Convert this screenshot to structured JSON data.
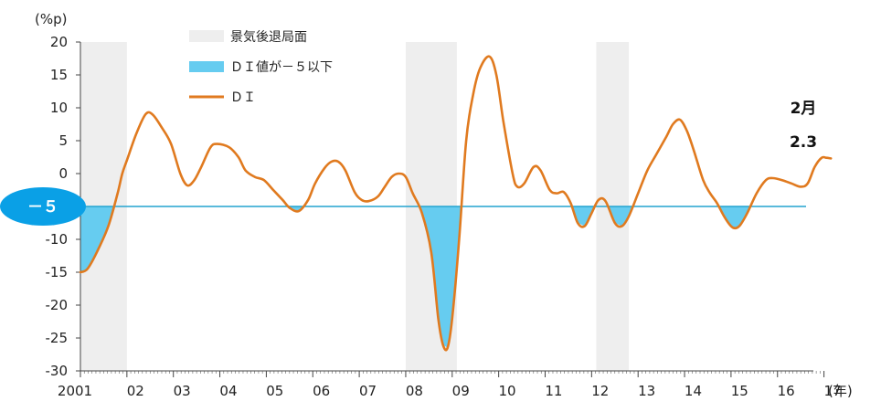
{
  "chart_data": {
    "type": "line",
    "ylabel": "(%p)",
    "xlabel": "(年)",
    "ylim": [
      -30,
      20
    ],
    "yticks": [
      20,
      15,
      10,
      5,
      0,
      -5,
      -10,
      -15,
      -20,
      -25,
      -30
    ],
    "x_tick_labels": [
      "2001",
      "02",
      "03",
      "04",
      "05",
      "06",
      "07",
      "08",
      "09",
      "10",
      "11",
      "12",
      "13",
      "14",
      "15",
      "16",
      "17"
    ],
    "x_range_years": [
      2001,
      2017.15
    ],
    "threshold": -5,
    "threshold_label": "－５",
    "recessions": [
      [
        2001.0,
        2002.0
      ],
      [
        2008.0,
        2009.1
      ],
      [
        2012.1,
        2012.8
      ]
    ],
    "legend": [
      {
        "key": "recession",
        "label": "景気後退局面",
        "color": "#eeeeee"
      },
      {
        "key": "below",
        "label": "ＤＩ値が－５以下",
        "color": "#66ccf0"
      },
      {
        "key": "di",
        "label": "ＤＩ",
        "color": "#e07a1f"
      }
    ],
    "annotation": {
      "month": "2月",
      "value": "2.3"
    },
    "series": [
      {
        "name": "ＤＩ",
        "points": [
          [
            2001.0,
            -15
          ],
          [
            2001.15,
            -14.5
          ],
          [
            2001.35,
            -12
          ],
          [
            2001.6,
            -8
          ],
          [
            2001.8,
            -3
          ],
          [
            2001.9,
            0
          ],
          [
            2002.0,
            2
          ],
          [
            2002.2,
            6
          ],
          [
            2002.4,
            9
          ],
          [
            2002.55,
            9
          ],
          [
            2002.75,
            7
          ],
          [
            2002.95,
            4.5
          ],
          [
            2003.15,
            0
          ],
          [
            2003.3,
            -1.8
          ],
          [
            2003.45,
            -1
          ],
          [
            2003.6,
            1
          ],
          [
            2003.8,
            4
          ],
          [
            2003.95,
            4.5
          ],
          [
            2004.2,
            4
          ],
          [
            2004.4,
            2.5
          ],
          [
            2004.55,
            0.5
          ],
          [
            2004.75,
            -0.5
          ],
          [
            2004.95,
            -1
          ],
          [
            2005.15,
            -2.5
          ],
          [
            2005.35,
            -4
          ],
          [
            2005.5,
            -5.2
          ],
          [
            2005.7,
            -5.7
          ],
          [
            2005.9,
            -4
          ],
          [
            2006.05,
            -1.5
          ],
          [
            2006.25,
            0.8
          ],
          [
            2006.4,
            1.8
          ],
          [
            2006.55,
            1.8
          ],
          [
            2006.7,
            0.5
          ],
          [
            2006.9,
            -2.8
          ],
          [
            2007.05,
            -4
          ],
          [
            2007.2,
            -4.2
          ],
          [
            2007.4,
            -3.5
          ],
          [
            2007.55,
            -2
          ],
          [
            2007.7,
            -0.5
          ],
          [
            2007.85,
            0
          ],
          [
            2008.0,
            -0.5
          ],
          [
            2008.15,
            -3
          ],
          [
            2008.35,
            -6
          ],
          [
            2008.55,
            -12
          ],
          [
            2008.7,
            -22
          ],
          [
            2008.8,
            -26
          ],
          [
            2008.9,
            -26.5
          ],
          [
            2009.0,
            -22
          ],
          [
            2009.15,
            -10
          ],
          [
            2009.3,
            5
          ],
          [
            2009.45,
            12
          ],
          [
            2009.6,
            16
          ],
          [
            2009.8,
            17.8
          ],
          [
            2009.95,
            15
          ],
          [
            2010.1,
            8
          ],
          [
            2010.3,
            0
          ],
          [
            2010.4,
            -2
          ],
          [
            2010.55,
            -1.5
          ],
          [
            2010.75,
            1
          ],
          [
            2010.9,
            0.5
          ],
          [
            2011.1,
            -2.5
          ],
          [
            2011.25,
            -3
          ],
          [
            2011.4,
            -2.8
          ],
          [
            2011.55,
            -4.5
          ],
          [
            2011.7,
            -7.5
          ],
          [
            2011.85,
            -8
          ],
          [
            2012.0,
            -6
          ],
          [
            2012.15,
            -4
          ],
          [
            2012.3,
            -4.2
          ],
          [
            2012.5,
            -7.5
          ],
          [
            2012.65,
            -8
          ],
          [
            2012.8,
            -6.5
          ],
          [
            2013.0,
            -3
          ],
          [
            2013.2,
            0.5
          ],
          [
            2013.4,
            3
          ],
          [
            2013.6,
            5.5
          ],
          [
            2013.75,
            7.5
          ],
          [
            2013.9,
            8.2
          ],
          [
            2014.05,
            6.5
          ],
          [
            2014.2,
            3.5
          ],
          [
            2014.4,
            -1
          ],
          [
            2014.55,
            -3
          ],
          [
            2014.7,
            -4.5
          ],
          [
            2014.85,
            -6.5
          ],
          [
            2015.0,
            -8
          ],
          [
            2015.1,
            -8.3
          ],
          [
            2015.2,
            -7.8
          ],
          [
            2015.35,
            -6
          ],
          [
            2015.55,
            -3
          ],
          [
            2015.75,
            -1
          ],
          [
            2015.9,
            -0.7
          ],
          [
            2016.1,
            -1
          ],
          [
            2016.3,
            -1.5
          ],
          [
            2016.5,
            -2
          ],
          [
            2016.65,
            -1.5
          ],
          [
            2016.8,
            1
          ],
          [
            2016.95,
            2.4
          ],
          [
            2017.05,
            2.4
          ],
          [
            2017.15,
            2.3
          ]
        ]
      }
    ]
  }
}
